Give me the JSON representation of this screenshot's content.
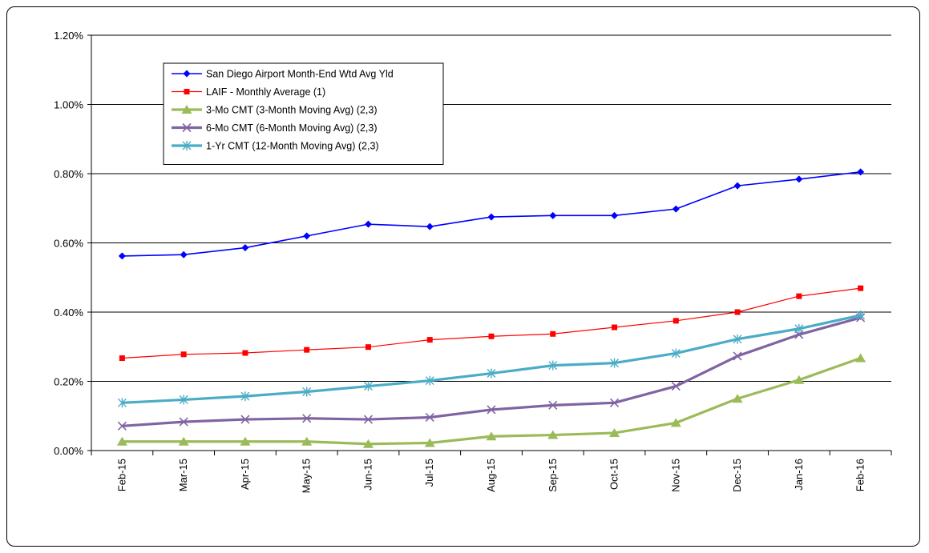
{
  "chart_data": {
    "type": "line",
    "title": "",
    "xlabel": "",
    "ylabel": "",
    "categories": [
      "Feb-15",
      "Mar-15",
      "Apr-15",
      "May-15",
      "Jun-15",
      "Jul-15",
      "Aug-15",
      "Sep-15",
      "Oct-15",
      "Nov-15",
      "Dec-15",
      "Jan-16",
      "Feb-16"
    ],
    "ylim": [
      0,
      1.2
    ],
    "y_ticks": [
      "0.00%",
      "0.20%",
      "0.40%",
      "0.60%",
      "0.80%",
      "1.00%",
      "1.20%"
    ],
    "y_tick_values": [
      0,
      0.2,
      0.4,
      0.6,
      0.8,
      1.0,
      1.2
    ],
    "grid": "horizontal",
    "legend_position": "top-left",
    "series": [
      {
        "name": "San Diego Airport Month-End Wtd Avg Yld",
        "color": "#0000FF",
        "marker": "diamond",
        "values": [
          0.562,
          0.566,
          0.586,
          0.62,
          0.654,
          0.647,
          0.675,
          0.679,
          0.679,
          0.698,
          0.765,
          0.784,
          0.805
        ]
      },
      {
        "name": "LAIF - Monthly Average (1)",
        "color": "#FF0000",
        "marker": "square",
        "values": [
          0.267,
          0.278,
          0.282,
          0.291,
          0.299,
          0.32,
          0.33,
          0.337,
          0.356,
          0.375,
          0.4,
          0.446,
          0.469
        ]
      },
      {
        "name": "3-Mo CMT (3-Month Moving Avg) (2,3)",
        "color": "#9BBB59",
        "marker": "triangle",
        "values": [
          0.026,
          0.026,
          0.026,
          0.026,
          0.019,
          0.022,
          0.041,
          0.045,
          0.051,
          0.08,
          0.15,
          0.204,
          0.267
        ]
      },
      {
        "name": "6-Mo CMT (6-Month Moving Avg) (2,3)",
        "color": "#8064A2",
        "marker": "x",
        "values": [
          0.071,
          0.083,
          0.09,
          0.093,
          0.09,
          0.096,
          0.118,
          0.131,
          0.138,
          0.186,
          0.273,
          0.335,
          0.384
        ]
      },
      {
        "name": "1-Yr CMT (12-Month Moving Avg) (2,3)",
        "color": "#4BACC6",
        "marker": "star",
        "values": [
          0.138,
          0.147,
          0.157,
          0.17,
          0.186,
          0.202,
          0.223,
          0.246,
          0.253,
          0.281,
          0.322,
          0.352,
          0.391
        ]
      }
    ]
  }
}
